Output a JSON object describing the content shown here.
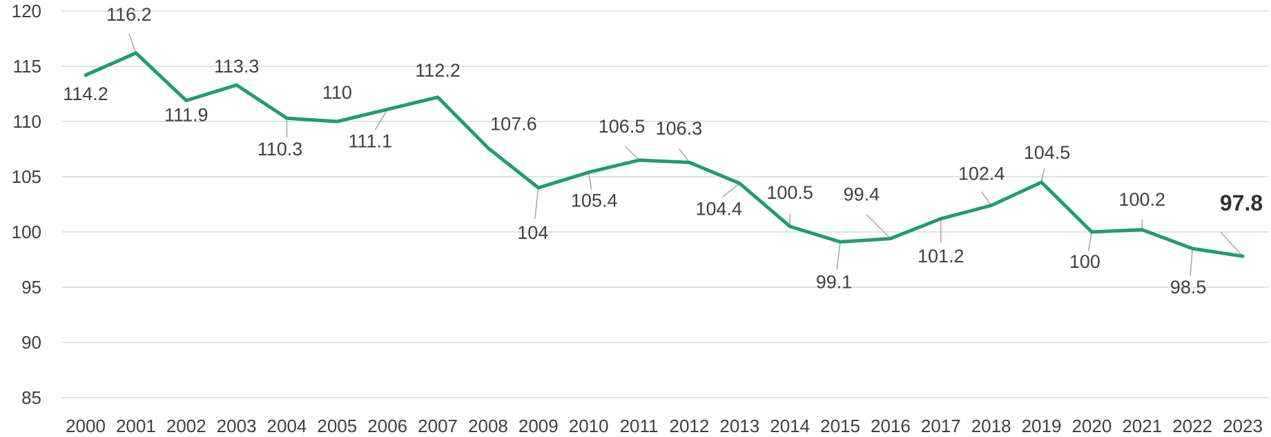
{
  "chart_data": {
    "type": "line",
    "title": "",
    "xlabel": "",
    "ylabel": "",
    "ylim": [
      85,
      120
    ],
    "yticks": [
      "85",
      "90",
      "95",
      "100",
      "105",
      "110",
      "115",
      "120"
    ],
    "grid": true,
    "legend": "none",
    "categories": [
      "2000",
      "2001",
      "2002",
      "2003",
      "2004",
      "2005",
      "2006",
      "2007",
      "2008",
      "2009",
      "2010",
      "2011",
      "2012",
      "2013",
      "2014",
      "2015",
      "2016",
      "2017",
      "2018",
      "2019",
      "2020",
      "2021",
      "2022",
      "2023"
    ],
    "series": [
      {
        "values": [
          114.2,
          116.2,
          111.9,
          113.3,
          110.3,
          110,
          111.1,
          112.2,
          107.6,
          104,
          105.4,
          106.5,
          106.3,
          104.4,
          100.5,
          99.1,
          99.4,
          101.2,
          102.4,
          104.5,
          100,
          100.2,
          98.5,
          97.8
        ],
        "labels": [
          "114.2",
          "116.2",
          "111.9",
          "113.3",
          "110.3",
          "110",
          "111.1",
          "112.2",
          "107.6",
          "104",
          "105.4",
          "106.5",
          "106.3",
          "104.4",
          "100.5",
          "99.1",
          "99.4",
          "101.2",
          "102.4",
          "104.5",
          "100",
          "100.2",
          "98.5",
          "97.8"
        ],
        "color": "#1f9c74"
      }
    ],
    "highlight_label_index": 23
  }
}
